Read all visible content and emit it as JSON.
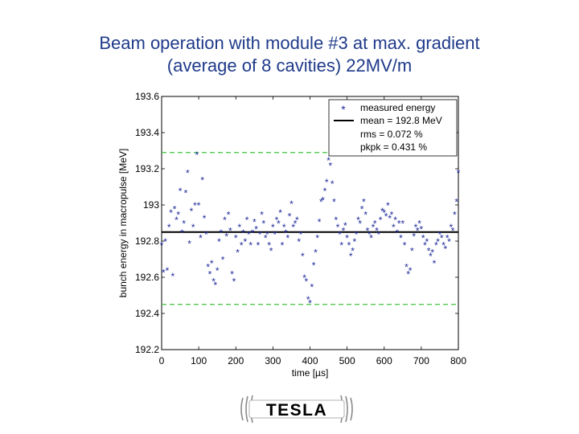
{
  "slide": {
    "title_line1": "Beam operation with module #3 at max. gradient",
    "title_line2": "(average of 8 cavities) 22MV/m"
  },
  "logo": {
    "text": "TESLA"
  },
  "colors": {
    "points": "#1e2a9a",
    "mean_line": "#000000",
    "limit_lines": "#3cc43c",
    "title": "#1f3a8a"
  },
  "chart_data": {
    "type": "scatter",
    "xlabel": "time [µs]",
    "ylabel": "bunch energy in macropulse [MeV]",
    "xlim": [
      0,
      800
    ],
    "ylim": [
      192.2,
      193.6
    ],
    "xticks": [
      "0",
      "100",
      "200",
      "300",
      "400",
      "500",
      "600",
      "700",
      "800"
    ],
    "yticks": [
      "192.2",
      "192.4",
      "192.6",
      "192.8",
      "193",
      "193.2",
      "193.4",
      "193.6"
    ],
    "legend": {
      "position": "top-right",
      "entries": [
        "measured energy",
        "mean = 192.8 MeV",
        "rms  = 0.072 %",
        "pkpk = 0.431 %"
      ]
    },
    "mean": 192.85,
    "limits": [
      192.45,
      193.29
    ],
    "series": [
      {
        "x": [
          0,
          5,
          10,
          15,
          20,
          25,
          30,
          35,
          40,
          45,
          50,
          55,
          60,
          65,
          70,
          75,
          80,
          85,
          90,
          95,
          100,
          105,
          110,
          115,
          120,
          125,
          130,
          135,
          140,
          145,
          150,
          155,
          160,
          165,
          170,
          175,
          180,
          185,
          190,
          195,
          200,
          205,
          210,
          215,
          220,
          225,
          230,
          235,
          240,
          245,
          250,
          255,
          260,
          265,
          270,
          275,
          280,
          285,
          290,
          295,
          300,
          305,
          310,
          315,
          320,
          325,
          330,
          335,
          340,
          345,
          350,
          355,
          360,
          365,
          370,
          375,
          380,
          385,
          390,
          395,
          400,
          405,
          410,
          415,
          420,
          425,
          430,
          435,
          440,
          445,
          450,
          455,
          460,
          465,
          470,
          475,
          480,
          485,
          490,
          495,
          500,
          505,
          510,
          515,
          520,
          525,
          530,
          535,
          540,
          545,
          550,
          555,
          560,
          565,
          570,
          575,
          580,
          585,
          590,
          595,
          600,
          605,
          610,
          615,
          620,
          625,
          630,
          635,
          640,
          645,
          650,
          655,
          660,
          665,
          670,
          675,
          680,
          685,
          690,
          695,
          700,
          705,
          710,
          715,
          720,
          725,
          730,
          735,
          740,
          745,
          750,
          755,
          760,
          765,
          770,
          775,
          780,
          785,
          790,
          795,
          800
        ],
        "y": [
          192.78,
          192.63,
          192.8,
          192.64,
          192.88,
          192.96,
          192.61,
          192.98,
          192.92,
          192.95,
          193.08,
          192.85,
          192.9,
          193.07,
          193.18,
          192.79,
          192.97,
          192.88,
          193.0,
          193.28,
          193.0,
          192.82,
          193.14,
          192.93,
          192.84,
          192.66,
          192.62,
          192.68,
          192.58,
          192.56,
          192.64,
          192.8,
          192.85,
          192.7,
          192.92,
          192.83,
          192.95,
          192.86,
          192.62,
          192.58,
          192.82,
          192.74,
          192.88,
          192.78,
          192.85,
          192.8,
          192.92,
          192.84,
          192.78,
          192.85,
          192.91,
          192.87,
          192.78,
          192.84,
          192.95,
          192.9,
          192.82,
          192.84,
          192.78,
          192.75,
          192.88,
          192.84,
          192.92,
          192.9,
          192.96,
          192.78,
          192.88,
          192.85,
          192.82,
          192.94,
          193.01,
          192.88,
          192.9,
          192.92,
          192.8,
          192.84,
          192.72,
          192.6,
          192.58,
          192.48,
          192.46,
          192.55,
          192.67,
          192.74,
          192.82,
          192.91,
          193.02,
          193.03,
          193.08,
          193.13,
          193.25,
          193.22,
          193.12,
          193.02,
          192.92,
          192.88,
          192.84,
          192.78,
          192.86,
          192.89,
          192.82,
          192.78,
          192.72,
          192.75,
          192.8,
          192.84,
          192.92,
          192.9,
          192.98,
          193.02,
          192.95,
          192.86,
          192.84,
          192.82,
          192.88,
          192.9,
          192.86,
          192.84,
          192.92,
          192.97,
          192.96,
          192.94,
          193.0,
          192.93,
          192.95,
          192.88,
          192.92,
          192.85,
          192.9,
          192.82,
          192.9,
          192.78,
          192.66,
          192.62,
          192.64,
          192.75,
          192.83,
          192.88,
          192.86,
          192.9,
          192.87,
          192.82,
          192.78,
          192.8,
          192.75,
          192.72,
          192.74,
          192.68,
          192.78,
          192.8,
          192.84,
          192.82,
          192.78,
          192.76,
          192.82,
          192.8,
          192.88,
          192.86,
          192.95,
          193.02,
          193.18
        ]
      }
    ]
  }
}
